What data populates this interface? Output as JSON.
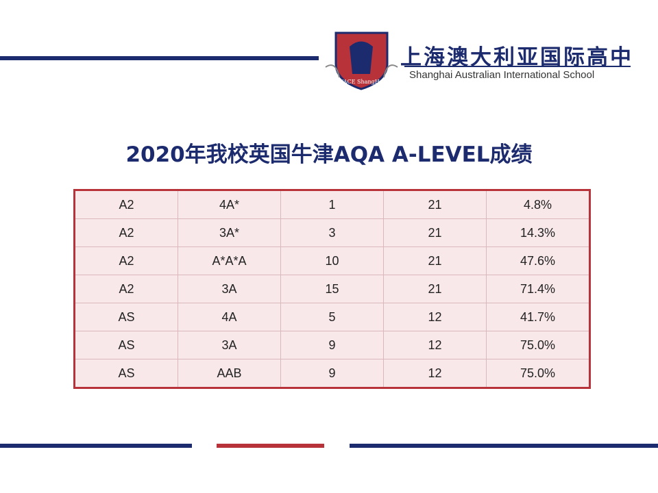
{
  "header": {
    "logo_text": "WACE ShangHai",
    "school_cn": "上海澳大利亚国际高中",
    "school_en": "Shanghai Australian International  School"
  },
  "title": "2020年我校英国牛津AQA A-LEVEL成绩",
  "table": {
    "rows": [
      [
        "A2",
        "4A*",
        "1",
        "21",
        "4.8%"
      ],
      [
        "A2",
        "3A*",
        "3",
        "21",
        "14.3%"
      ],
      [
        "A2",
        "A*A*A",
        "10",
        "21",
        "47.6%"
      ],
      [
        "A2",
        "3A",
        "15",
        "21",
        "71.4%"
      ],
      [
        "AS",
        "4A",
        "5",
        "12",
        "41.7%"
      ],
      [
        "AS",
        "3A",
        "9",
        "12",
        "75.0%"
      ],
      [
        "AS",
        "AAB",
        "9",
        "12",
        "75.0%"
      ]
    ]
  }
}
